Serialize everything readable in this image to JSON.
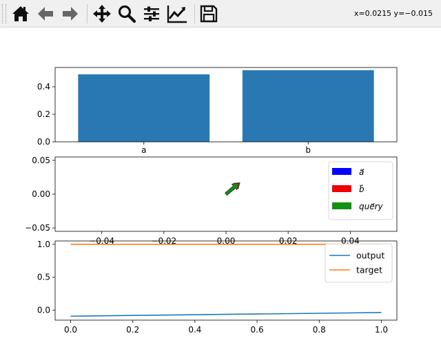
{
  "toolbar": {
    "coordinates": "x=0.0215 y=−0.015",
    "buttons": [
      {
        "name": "home-icon"
      },
      {
        "name": "back-arrow-icon"
      },
      {
        "name": "forward-arrow-icon"
      },
      {
        "name": "pan-move-icon"
      },
      {
        "name": "zoom-magnifier-icon"
      },
      {
        "name": "configure-subplots-icon"
      },
      {
        "name": "edit-axes-icon"
      },
      {
        "name": "save-floppy-icon"
      }
    ]
  },
  "chart_data": [
    {
      "type": "bar",
      "categories": [
        "a",
        "b"
      ],
      "values": [
        0.49,
        0.52
      ],
      "ylim": [
        0,
        0.54
      ],
      "yticks": [
        "0.0",
        "0.2",
        "0.4"
      ],
      "color": "#2a78b3"
    },
    {
      "type": "quiver",
      "xlim": [
        -0.055,
        0.055
      ],
      "ylim": [
        -0.055,
        0.055
      ],
      "xticks": [
        "−0.04",
        "−0.02",
        "0.00",
        "0.02",
        "0.04"
      ],
      "yticks": [
        "−0.05",
        "0.00",
        "0.05"
      ],
      "series": [
        {
          "name": "a⃗",
          "color": "#0000ff",
          "dx": 0.004,
          "dy": 0.016
        },
        {
          "name": "b⃗",
          "color": "#ee0000",
          "dx": 0.0045,
          "dy": 0.017
        },
        {
          "name": "quéry",
          "label_display": "que⃗ry",
          "color": "#119011",
          "dx": 0.004,
          "dy": 0.016
        }
      ],
      "legend_position": "top-right"
    },
    {
      "type": "line",
      "xlim": [
        -0.05,
        1.05
      ],
      "ylim": [
        -0.15,
        1.05
      ],
      "xticks": [
        "0.0",
        "0.2",
        "0.4",
        "0.6",
        "0.8",
        "1.0"
      ],
      "yticks": [
        "0.0",
        "0.5",
        "1.0"
      ],
      "series": [
        {
          "name": "output",
          "color": "#1f77b4",
          "x": [
            0.0,
            1.0
          ],
          "y": [
            -0.09,
            -0.035
          ]
        },
        {
          "name": "target",
          "color": "#ff7f0e",
          "x": [
            0.0,
            1.0
          ],
          "y": [
            1.0,
            1.0
          ]
        }
      ],
      "legend_position": "top-right"
    }
  ]
}
